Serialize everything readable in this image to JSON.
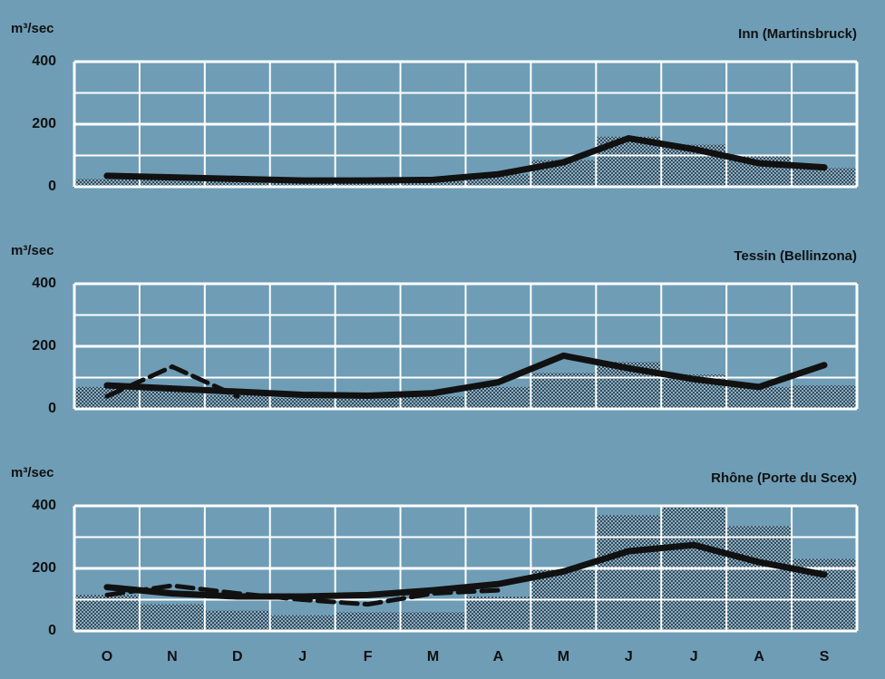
{
  "chart_data": [
    {
      "type": "bar_line",
      "title": "Inn (Martinsbruck)",
      "y_label": "m³/sec",
      "values": [
        25,
        25,
        20,
        15,
        15,
        20,
        40,
        85,
        160,
        135,
        100,
        60
      ],
      "bar_color": "#2c4352",
      "series": [
        {
          "color": "#111111",
          "style": "solid",
          "values": [
            35,
            30,
            25,
            20,
            20,
            22,
            40,
            78,
            155,
            120,
            75,
            62
          ]
        }
      ],
      "ylim": [
        0,
        400
      ],
      "yticks": [
        0,
        200,
        400
      ],
      "minor_yticks": [
        100,
        300
      ],
      "grid": true
    },
    {
      "type": "bar_line",
      "title": "Tessin (Bellinzona)",
      "y_label": "m³/sec",
      "values": [
        70,
        60,
        45,
        35,
        35,
        40,
        70,
        115,
        150,
        110,
        70,
        75
      ],
      "bar_color": "#2c4352",
      "series": [
        {
          "color": "#111111",
          "style": "solid",
          "values": [
            75,
            65,
            55,
            45,
            42,
            50,
            85,
            170,
            130,
            95,
            70,
            140
          ]
        },
        {
          "color": "#111111",
          "style": "dashed",
          "values": [
            40,
            135,
            40,
            null,
            null,
            null,
            null,
            null,
            null,
            null,
            null,
            null
          ]
        }
      ],
      "ylim": [
        0,
        400
      ],
      "yticks": [
        0,
        200,
        400
      ],
      "minor_yticks": [
        100,
        300
      ],
      "grid": true
    },
    {
      "type": "bar_line",
      "title": "Rhône (Porte du Scex)",
      "y_label": "m³/sec",
      "categories": [
        "O",
        "N",
        "D",
        "J",
        "F",
        "M",
        "A",
        "M",
        "J",
        "J",
        "A",
        "S"
      ],
      "values": [
        115,
        85,
        65,
        50,
        60,
        60,
        110,
        195,
        370,
        395,
        335,
        230
      ],
      "bar_color": "#2c4352",
      "series": [
        {
          "color": "#111111",
          "style": "solid",
          "values": [
            140,
            120,
            110,
            110,
            115,
            130,
            150,
            190,
            255,
            275,
            220,
            180
          ]
        },
        {
          "color": "#111111",
          "style": "dashed",
          "values": [
            115,
            145,
            120,
            100,
            85,
            120,
            130,
            null,
            null,
            null,
            null,
            null
          ]
        }
      ],
      "ylim": [
        0,
        400
      ],
      "yticks": [
        0,
        200,
        400
      ],
      "minor_yticks": [
        100,
        300
      ],
      "grid": true
    }
  ]
}
